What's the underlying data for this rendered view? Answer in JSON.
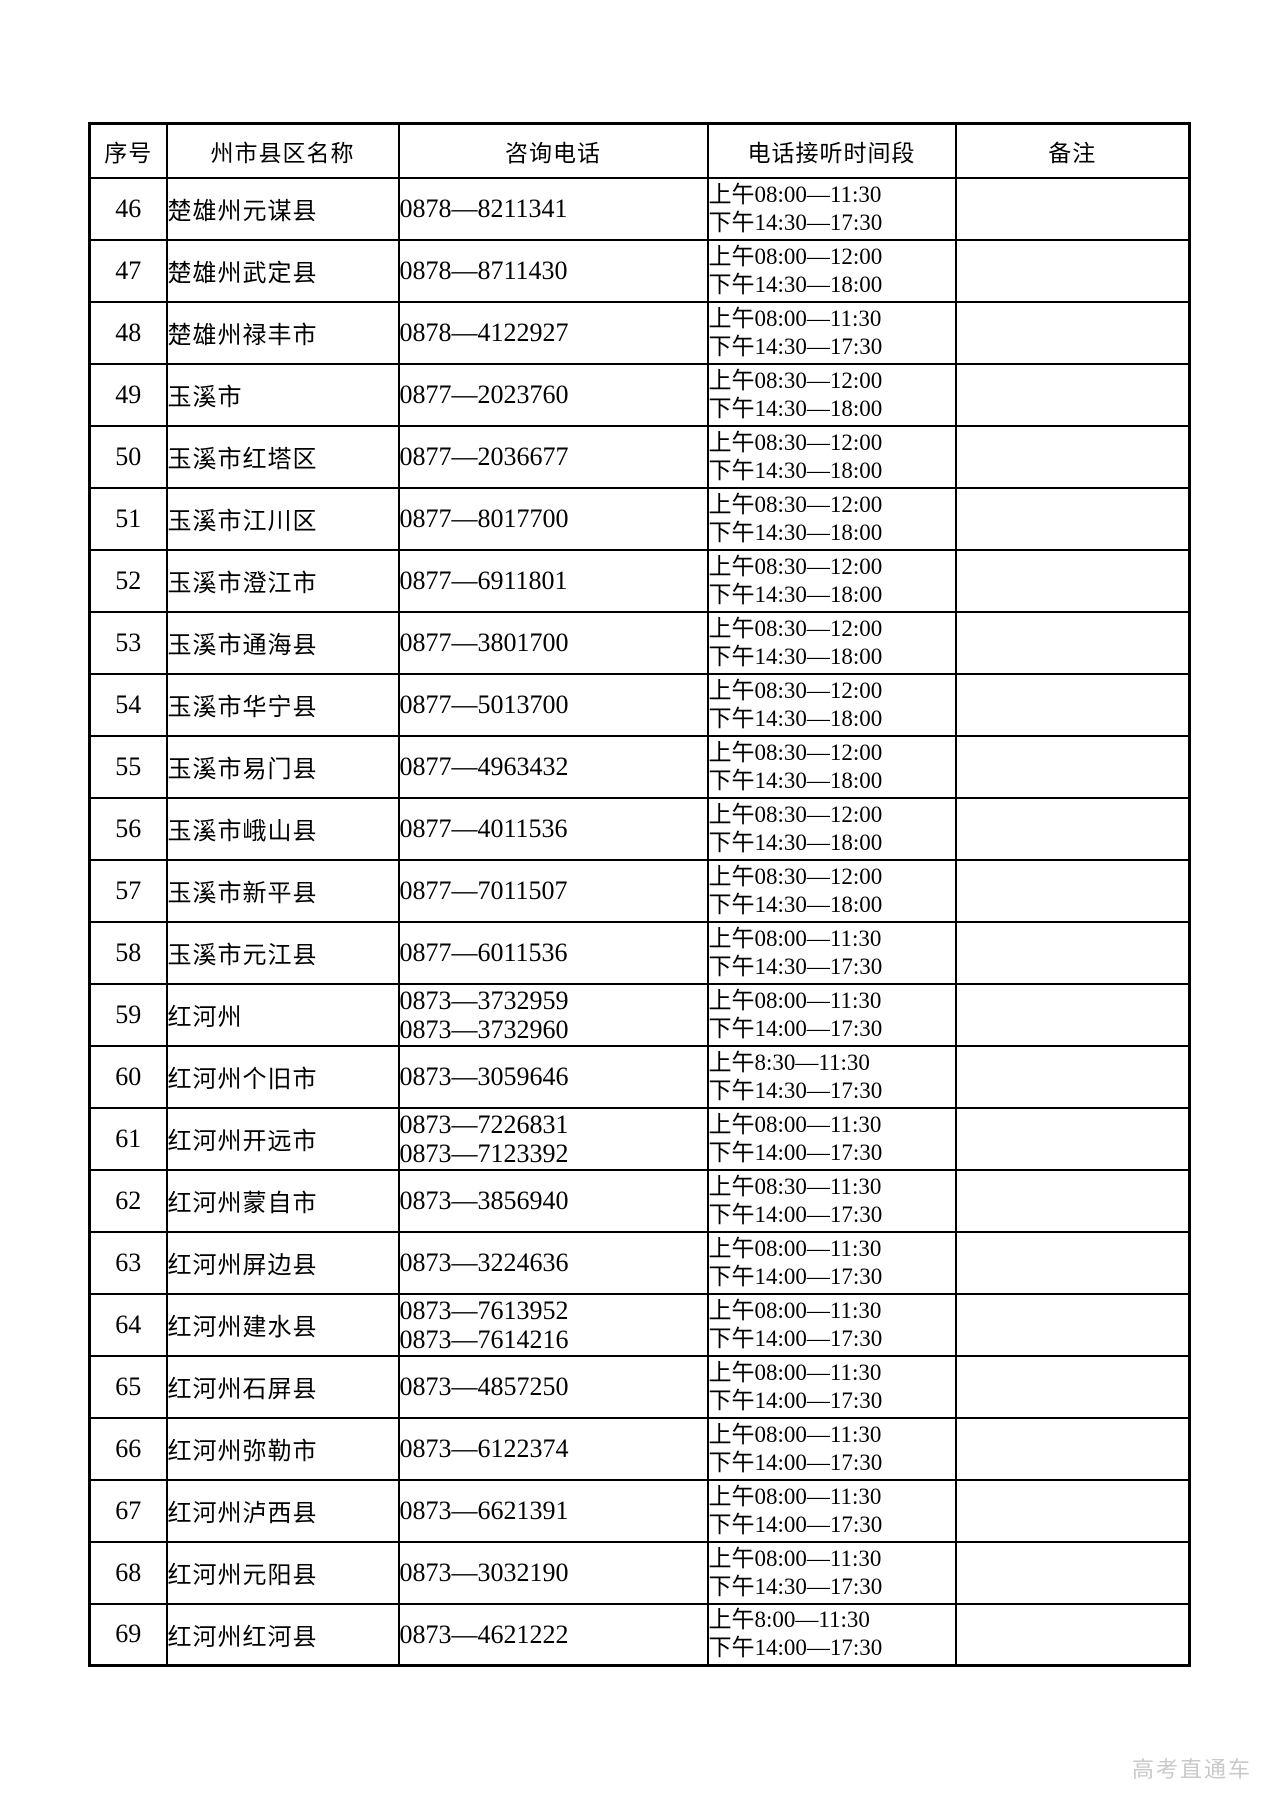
{
  "watermark": "高考直通车",
  "table": {
    "headers": [
      "序号",
      "州市县区名称",
      "咨询电话",
      "电话接听时间段",
      "备注"
    ],
    "rows": [
      {
        "no": "46",
        "name": "楚雄州元谋县",
        "phones": [
          "0878—8211341"
        ],
        "times": [
          "上午08:00—11:30",
          "下午14:30—17:30"
        ],
        "remark": ""
      },
      {
        "no": "47",
        "name": "楚雄州武定县",
        "phones": [
          "0878—8711430"
        ],
        "times": [
          "上午08:00—12:00",
          "下午14:30—18:00"
        ],
        "remark": ""
      },
      {
        "no": "48",
        "name": "楚雄州禄丰市",
        "phones": [
          "0878—4122927"
        ],
        "times": [
          "上午08:00—11:30",
          "下午14:30—17:30"
        ],
        "remark": ""
      },
      {
        "no": "49",
        "name": "玉溪市",
        "phones": [
          "0877—2023760"
        ],
        "times": [
          "上午08:30—12:00",
          "下午14:30—18:00"
        ],
        "remark": ""
      },
      {
        "no": "50",
        "name": "玉溪市红塔区",
        "phones": [
          "0877—2036677"
        ],
        "times": [
          "上午08:30—12:00",
          "下午14:30—18:00"
        ],
        "remark": ""
      },
      {
        "no": "51",
        "name": "玉溪市江川区",
        "phones": [
          "0877—8017700"
        ],
        "times": [
          "上午08:30—12:00",
          "下午14:30—18:00"
        ],
        "remark": ""
      },
      {
        "no": "52",
        "name": "玉溪市澄江市",
        "phones": [
          "0877—6911801"
        ],
        "times": [
          "上午08:30—12:00",
          "下午14:30—18:00"
        ],
        "remark": ""
      },
      {
        "no": "53",
        "name": "玉溪市通海县",
        "phones": [
          "0877—3801700"
        ],
        "times": [
          "上午08:30—12:00",
          "下午14:30—18:00"
        ],
        "remark": ""
      },
      {
        "no": "54",
        "name": "玉溪市华宁县",
        "phones": [
          "0877—5013700"
        ],
        "times": [
          "上午08:30—12:00",
          "下午14:30—18:00"
        ],
        "remark": ""
      },
      {
        "no": "55",
        "name": "玉溪市易门县",
        "phones": [
          "0877—4963432"
        ],
        "times": [
          "上午08:30—12:00",
          "下午14:30—18:00"
        ],
        "remark": ""
      },
      {
        "no": "56",
        "name": "玉溪市峨山县",
        "phones": [
          "0877—4011536"
        ],
        "times": [
          "上午08:30—12:00",
          "下午14:30—18:00"
        ],
        "remark": ""
      },
      {
        "no": "57",
        "name": "玉溪市新平县",
        "phones": [
          "0877—7011507"
        ],
        "times": [
          "上午08:30—12:00",
          "下午14:30—18:00"
        ],
        "remark": ""
      },
      {
        "no": "58",
        "name": "玉溪市元江县",
        "phones": [
          "0877—6011536"
        ],
        "times": [
          "上午08:00—11:30",
          "下午14:30—17:30"
        ],
        "remark": ""
      },
      {
        "no": "59",
        "name": "红河州",
        "phones": [
          "0873—3732959",
          "0873—3732960"
        ],
        "times": [
          "上午08:00—11:30",
          "下午14:00—17:30"
        ],
        "remark": ""
      },
      {
        "no": "60",
        "name": "红河州个旧市",
        "phones": [
          "0873—3059646"
        ],
        "times": [
          "上午8:30—11:30",
          "下午14:30—17:30"
        ],
        "remark": ""
      },
      {
        "no": "61",
        "name": "红河州开远市",
        "phones": [
          "0873—7226831",
          "0873—7123392"
        ],
        "times": [
          "上午08:00—11:30",
          "下午14:00—17:30"
        ],
        "remark": ""
      },
      {
        "no": "62",
        "name": "红河州蒙自市",
        "phones": [
          "0873—3856940"
        ],
        "times": [
          "上午08:30—11:30",
          "下午14:00—17:30"
        ],
        "remark": ""
      },
      {
        "no": "63",
        "name": "红河州屏边县",
        "phones": [
          "0873—3224636"
        ],
        "times": [
          "上午08:00—11:30",
          "下午14:00—17:30"
        ],
        "remark": ""
      },
      {
        "no": "64",
        "name": "红河州建水县",
        "phones": [
          "0873—7613952",
          "0873—7614216"
        ],
        "times": [
          "上午08:00—11:30",
          "下午14:00—17:30"
        ],
        "remark": ""
      },
      {
        "no": "65",
        "name": "红河州石屏县",
        "phones": [
          "0873—4857250"
        ],
        "times": [
          "上午08:00—11:30",
          "下午14:00—17:30"
        ],
        "remark": ""
      },
      {
        "no": "66",
        "name": "红河州弥勒市",
        "phones": [
          "0873—6122374"
        ],
        "times": [
          "上午08:00—11:30",
          "下午14:00—17:30"
        ],
        "remark": ""
      },
      {
        "no": "67",
        "name": "红河州泸西县",
        "phones": [
          "0873—6621391"
        ],
        "times": [
          "上午08:00—11:30",
          "下午14:00—17:30"
        ],
        "remark": ""
      },
      {
        "no": "68",
        "name": "红河州元阳县",
        "phones": [
          "0873—3032190"
        ],
        "times": [
          "上午08:00—11:30",
          "下午14:30—17:30"
        ],
        "remark": ""
      },
      {
        "no": "69",
        "name": "红河州红河县",
        "phones": [
          "0873—4621222"
        ],
        "times": [
          "上午8:00—11:30",
          "下午14:00—17:30"
        ],
        "remark": ""
      }
    ]
  }
}
